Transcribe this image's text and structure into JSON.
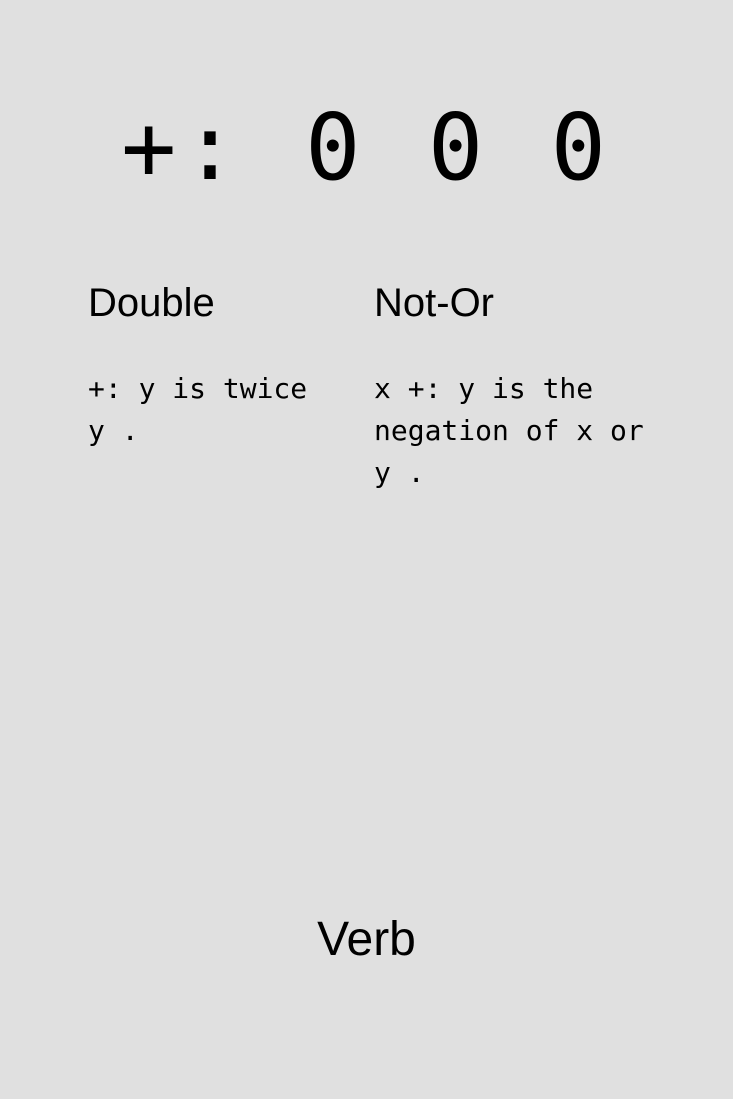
{
  "primitive": {
    "glyph_display": "+: 0 0 0"
  },
  "monadic": {
    "heading": "Double",
    "description": "+: y is twice\ny ."
  },
  "dyadic": {
    "heading": "Not-Or",
    "description": "x +: y is the\nnegation of x or\ny ."
  },
  "footer": {
    "part_of_speech": "Verb"
  }
}
